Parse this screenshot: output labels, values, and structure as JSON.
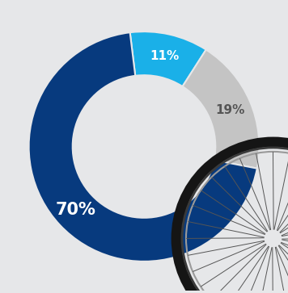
{
  "chart_data": {
    "type": "pie",
    "values": [
      11,
      19,
      70
    ],
    "value_labels": [
      "11%",
      "19%",
      "70%"
    ],
    "colors": [
      "#1ab0e8",
      "#c4c4c4",
      "#073a7e"
    ],
    "data_labels": true
  }
}
